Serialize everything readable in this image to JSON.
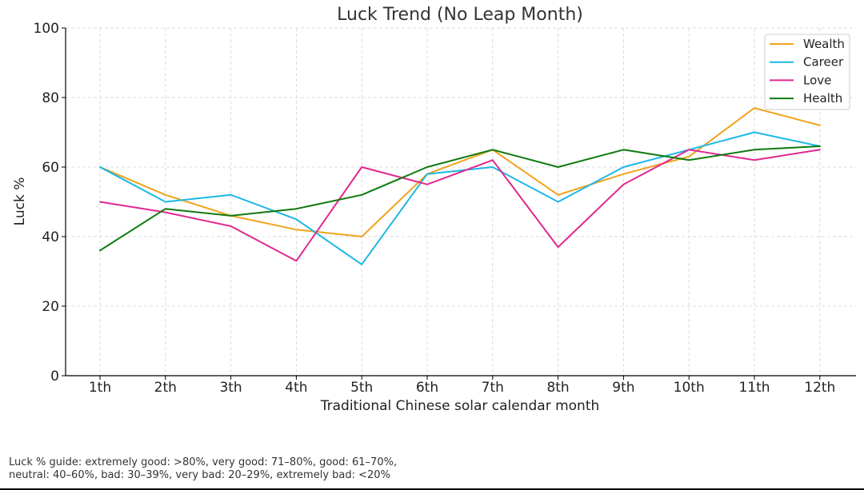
{
  "chart_data": {
    "type": "line",
    "title": "Luck Trend (No Leap Month)",
    "xlabel": "Traditional Chinese solar calendar month",
    "ylabel": "Luck %",
    "categories": [
      "1th",
      "2th",
      "3th",
      "4th",
      "5th",
      "6th",
      "7th",
      "8th",
      "9th",
      "10th",
      "11th",
      "12th"
    ],
    "ylim": [
      0,
      100
    ],
    "yticks": [
      0,
      20,
      40,
      60,
      80,
      100
    ],
    "grid": true,
    "legend_position": "top-right",
    "series": [
      {
        "name": "Wealth",
        "color": "#f0a31c",
        "values": [
          60,
          52,
          46,
          42,
          40,
          58,
          65,
          52,
          58,
          63,
          77,
          72
        ]
      },
      {
        "name": "Career",
        "color": "#1cb8e6",
        "values": [
          60,
          50,
          52,
          45,
          32,
          58,
          60,
          50,
          60,
          65,
          70,
          66
        ]
      },
      {
        "name": "Love",
        "color": "#e0288f",
        "values": [
          50,
          47,
          43,
          33,
          60,
          55,
          62,
          37,
          55,
          65,
          62,
          65
        ]
      },
      {
        "name": "Health",
        "color": "#0f7a0f",
        "values": [
          36,
          48,
          46,
          48,
          52,
          60,
          65,
          60,
          65,
          62,
          65,
          66
        ]
      }
    ]
  },
  "footnote": {
    "line1": "Luck % guide: extremely good: >80%, very good: 71–80%, good: 61–70%,",
    "line2": "neutral: 40–60%, bad: 30–39%, very bad: 20–29%, extremely bad: <20%"
  }
}
